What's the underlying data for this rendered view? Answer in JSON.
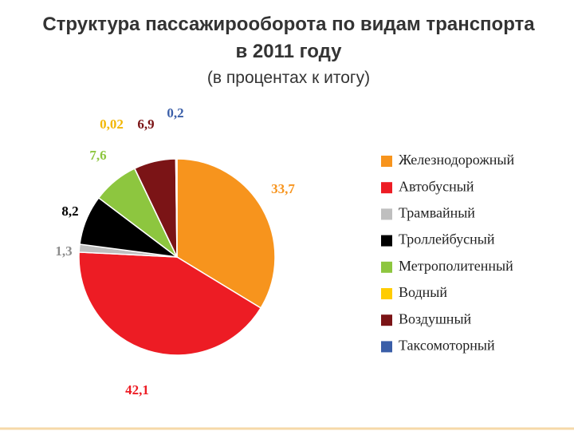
{
  "chart_data": {
    "type": "pie",
    "title": [
      "Структура пассажирооборота по видам транспорта",
      "в 2011 году"
    ],
    "subtitle": "(в процентах к итогу)",
    "categories": [
      "Железнодорожный",
      "Автобусный",
      "Трамвайный",
      "Троллейбусный",
      "Метрополитенный",
      "Водный",
      "Воздушный",
      "Таксомоторный"
    ],
    "values": [
      33.7,
      42.1,
      1.3,
      8.2,
      7.6,
      0.02,
      6.9,
      0.2
    ],
    "value_labels": [
      "33,7",
      "42,1",
      "1,3",
      "8,2",
      "7,6",
      "0,02",
      "6,9",
      "0,2"
    ],
    "colors": [
      "#f7941d",
      "#ed1c24",
      "#bfbfbf",
      "#000000",
      "#8dc63f",
      "#ffcc00",
      "#7b1416",
      "#3a5ea8"
    ],
    "legend": "right"
  }
}
